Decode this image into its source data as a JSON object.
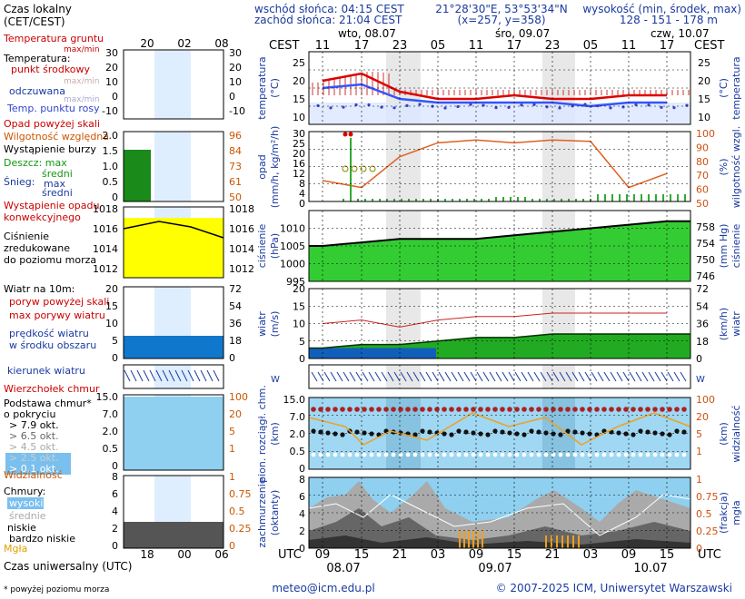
{
  "header": {
    "sunrise": "wschód słońca: 04:15 CEST",
    "sunset": "zachód słońca: 21:04 CEST",
    "coords": "21°28'30\"E, 53°53'34\"N",
    "grid": "(x=257, y=358)",
    "elev_title": "wysokość (min, środek, max)",
    "elev_values": "128 - 151 - 178 m"
  },
  "axes": {
    "cest": "CEST",
    "utc": "UTC",
    "days_top": [
      "wto, 08.07",
      "śro, 09.07",
      "czw, 10.07"
    ],
    "hours_top": [
      "11",
      "17",
      "23",
      "05",
      "11",
      "17",
      "23",
      "05",
      "11",
      "17"
    ],
    "hours_bottom": [
      "09",
      "15",
      "21",
      "03",
      "09",
      "15",
      "21",
      "03",
      "09",
      "15"
    ],
    "days_bottom": [
      "08.07",
      "09.07",
      "10.07"
    ]
  },
  "legend": {
    "time_title": "Czas lokalny",
    "time_sub": "(CET/CEST)",
    "time_ticks": [
      "20",
      "02",
      "08"
    ],
    "temp_ground": "Temperatura gruntu",
    "temp_ground_sub": "max/min",
    "temperature": "Temperatura:",
    "mid_point": "punkt środkowy",
    "mid_sub": "max/min",
    "perceived": "odczuwana",
    "perceived_sub": "max/min",
    "dew": "Temp. punktu rosy",
    "temp_ticks": [
      "30",
      "20",
      "10",
      "0",
      "-10"
    ],
    "precip_over": "Opad powyżej skali",
    "humidity": "Wilgotność względna",
    "storm": "Wystąpienie burzy",
    "rain": "Deszcz: max",
    "rain_mid": "średni",
    "snow": "Śnieg:",
    "snow_max": "max",
    "snow_mid": "średni",
    "conv": "Wystąpienie opadu",
    "conv2": "konwekcyjnego",
    "precip_ticks": [
      "2.0",
      "1.5",
      "1.0",
      "0.5",
      "0"
    ],
    "humid_ticks": [
      "96",
      "84",
      "73",
      "61",
      "50"
    ],
    "pressure1": "Ciśnienie",
    "pressure2": "zredukowane",
    "pressure3": "do poziomu morza",
    "pressure_ticks": [
      "1018",
      "1016",
      "1014",
      "1012"
    ],
    "wind_title": "Wiatr na 10m:",
    "gust_over": "poryw powyżej skali",
    "gust_max": "max porywy wiatru",
    "wind_mean": "prędkość wiatru",
    "wind_area": "w środku obszaru",
    "wind_ticks": [
      "20",
      "15",
      "10",
      "5",
      "0"
    ],
    "wind_ticks_kmh": [
      "72",
      "54",
      "36",
      "18",
      "0"
    ],
    "wind_dir": "kierunek wiatru",
    "dewpoint_label": "Wierzchołek chmur",
    "cloud_base1": "Podstawa chmur*",
    "cloud_base2": "o pokryciu",
    "okta": [
      "> 7.9 okt.",
      "> 6.5 okt.",
      "> 4.5 okt.",
      "> 2.5 okt.",
      "> 0.1 okt."
    ],
    "visibility": "Widzialność",
    "cloud_ticks": [
      "15.0",
      "7.0",
      "2.0",
      "0.5",
      "0"
    ],
    "vis_ticks": [
      "100",
      "20",
      "5",
      "1"
    ],
    "clouds": "Chmury:",
    "high": "wysokie",
    "middle": "średnie",
    "low": "niskie",
    "very_low": "bardzo niskie",
    "fog": "Mgła",
    "cloud8_ticks": [
      "8",
      "6",
      "4",
      "2",
      "0"
    ],
    "fog_ticks": [
      "1",
      "0.75",
      "0.5",
      "0.25",
      "0"
    ],
    "utc_title": "Czas uniwersalny (UTC)",
    "utc_ticks": [
      "18",
      "00",
      "06"
    ],
    "footnote": "* powyżej poziomu morza"
  },
  "panel_labels": {
    "temp": [
      "temperatura",
      "(°C)"
    ],
    "precip": [
      "opad",
      "(mm/h, kg/m²/h)"
    ],
    "humid": [
      "(%)",
      "wilgotność wzgl."
    ],
    "pressure": [
      "ciśnienie",
      "(hPa)"
    ],
    "pressure_mm": [
      "(mm Hg)",
      "ciśnienie"
    ],
    "wind": [
      "wiatr",
      "(m/s)"
    ],
    "wind_kmh": [
      "(km/h)",
      "wiatr"
    ],
    "cloud_left": [
      "pion. rozciągł. chm.",
      "(km)"
    ],
    "cloud_right": [
      "(km)",
      "widzialność"
    ],
    "cover_left": [
      "zachmurzenie",
      "(oktanty)"
    ],
    "cover_right": [
      "(frakcja)",
      "mgła"
    ]
  },
  "right_axes": {
    "temp": [
      "25",
      "20",
      "15",
      "10"
    ],
    "precip_left": [
      "30",
      "25",
      "20",
      "16",
      "12",
      "8",
      "4",
      "0"
    ],
    "humid": [
      "100",
      "90",
      "80",
      "70",
      "60",
      "50"
    ],
    "pressure_left": [
      "1010",
      "1005",
      "1000",
      "995"
    ],
    "pressure_mm": [
      "758",
      "754",
      "750",
      "746"
    ],
    "wind_ms": [
      "20",
      "15",
      "10",
      "5",
      "0"
    ],
    "wind_kmh": [
      "72",
      "54",
      "36",
      "18",
      "0"
    ],
    "cloud_km": [
      "15.0",
      "7.0",
      "2.0",
      "0.5",
      "0"
    ],
    "vis": [
      "100",
      "20",
      "5",
      "1"
    ],
    "oktas": [
      "8",
      "6",
      "4",
      "2",
      "0"
    ],
    "fog": [
      "1",
      "0.75",
      "0.5",
      "0.25",
      "0"
    ]
  },
  "footer": {
    "email": "meteo@icm.edu.pl",
    "copyright": "© 2007-2025 ICM, Uniwersytet Warszawski"
  },
  "colors": {
    "temp": "#dd0000",
    "perceived": "#3355ff",
    "humidity": "#e06020",
    "pressure_fill": "#33cc33",
    "wind": "#006600",
    "night": "#e8e8e8",
    "sky": "#8fd0f0"
  },
  "chart_data": [
    {
      "type": "line",
      "title": "temperatura (°C)",
      "x": [
        "08.07 11",
        "08.07 17",
        "08.07 23",
        "09.07 05",
        "09.07 11",
        "09.07 17",
        "09.07 23",
        "10.07 05",
        "10.07 11",
        "10.07 17"
      ],
      "series": [
        {
          "name": "punkt środkowy",
          "values": [
            20,
            22,
            17,
            15,
            15,
            16,
            15,
            15,
            16,
            16
          ]
        },
        {
          "name": "odczuwana",
          "values": [
            18,
            19,
            15,
            14,
            14,
            14,
            14,
            13,
            14,
            14
          ]
        }
      ],
      "ylim": [
        10,
        28
      ]
    },
    {
      "type": "line",
      "title": "opad / wilgotność",
      "x": [
        "08.07 11",
        "08.07 17",
        "08.07 23",
        "09.07 05",
        "09.07 11",
        "09.07 17",
        "09.07 23",
        "10.07 05",
        "10.07 11",
        "10.07 17"
      ],
      "series": [
        {
          "name": "wilgotność",
          "values": [
            65,
            60,
            82,
            92,
            94,
            92,
            94,
            93,
            60,
            70
          ]
        }
      ],
      "ylim": [
        50,
        100
      ]
    },
    {
      "type": "area",
      "title": "ciśnienie (hPa)",
      "x": [
        "08.07 11",
        "08.07 17",
        "08.07 23",
        "09.07 05",
        "09.07 11",
        "09.07 17",
        "09.07 23",
        "10.07 05",
        "10.07 11",
        "10.07 17"
      ],
      "values": [
        1005,
        1006,
        1007,
        1007,
        1007,
        1008,
        1009,
        1010,
        1011,
        1012
      ],
      "ylim": [
        995,
        1015
      ]
    },
    {
      "type": "line",
      "title": "wiatr (m/s)",
      "x": [
        "08.07 11",
        "08.07 17",
        "08.07 23",
        "09.07 05",
        "09.07 11",
        "09.07 17",
        "09.07 23",
        "10.07 05",
        "10.07 11",
        "10.07 17"
      ],
      "series": [
        {
          "name": "max porywy",
          "values": [
            10,
            11,
            9,
            11,
            12,
            12,
            13,
            13,
            13,
            13
          ]
        },
        {
          "name": "prędkość",
          "values": [
            3,
            4,
            4,
            5,
            6,
            6,
            7,
            7,
            7,
            7
          ]
        }
      ],
      "ylim": [
        0,
        20
      ]
    }
  ]
}
